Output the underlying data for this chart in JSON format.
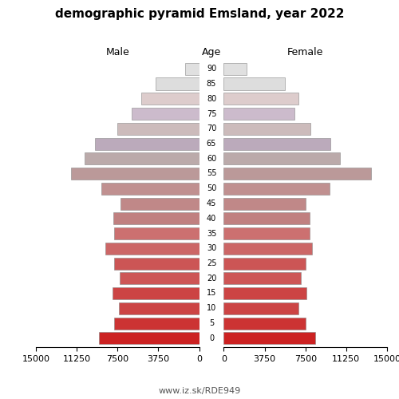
{
  "title": "demographic pyramid Emsland, year 2022",
  "male_label": "Male",
  "female_label": "Female",
  "age_label": "Age",
  "footer": "www.iz.sk/RDE949",
  "age_groups": [
    0,
    5,
    10,
    15,
    20,
    25,
    30,
    35,
    40,
    45,
    50,
    55,
    60,
    65,
    70,
    75,
    80,
    85,
    90
  ],
  "male_values": [
    9200,
    7800,
    7400,
    8000,
    7300,
    7800,
    8600,
    7800,
    7900,
    7200,
    9000,
    11800,
    10500,
    9600,
    7500,
    6200,
    5300,
    4000,
    1300
  ],
  "female_values": [
    8400,
    7500,
    6900,
    7600,
    7100,
    7500,
    8100,
    7900,
    7900,
    7500,
    9700,
    13500,
    10700,
    9800,
    8000,
    6500,
    6900,
    5600,
    2100
  ],
  "xlim": 15000,
  "bar_colors": [
    "#cc2222",
    "#cc3333",
    "#cc4444",
    "#cc4444",
    "#cd5555",
    "#cc5555",
    "#cc6666",
    "#cc7070",
    "#c08080",
    "#c08888",
    "#c09090",
    "#bb9999",
    "#bbaaaa",
    "#bbaabb",
    "#ccbbbb",
    "#ccbbcc",
    "#ddcccc",
    "#dddddd",
    "#e0e0e0"
  ],
  "figsize": [
    5.0,
    5.0
  ],
  "dpi": 100,
  "title_fontsize": 11,
  "label_fontsize": 9,
  "tick_fontsize": 8,
  "age_fontsize": 7,
  "footer_fontsize": 8
}
